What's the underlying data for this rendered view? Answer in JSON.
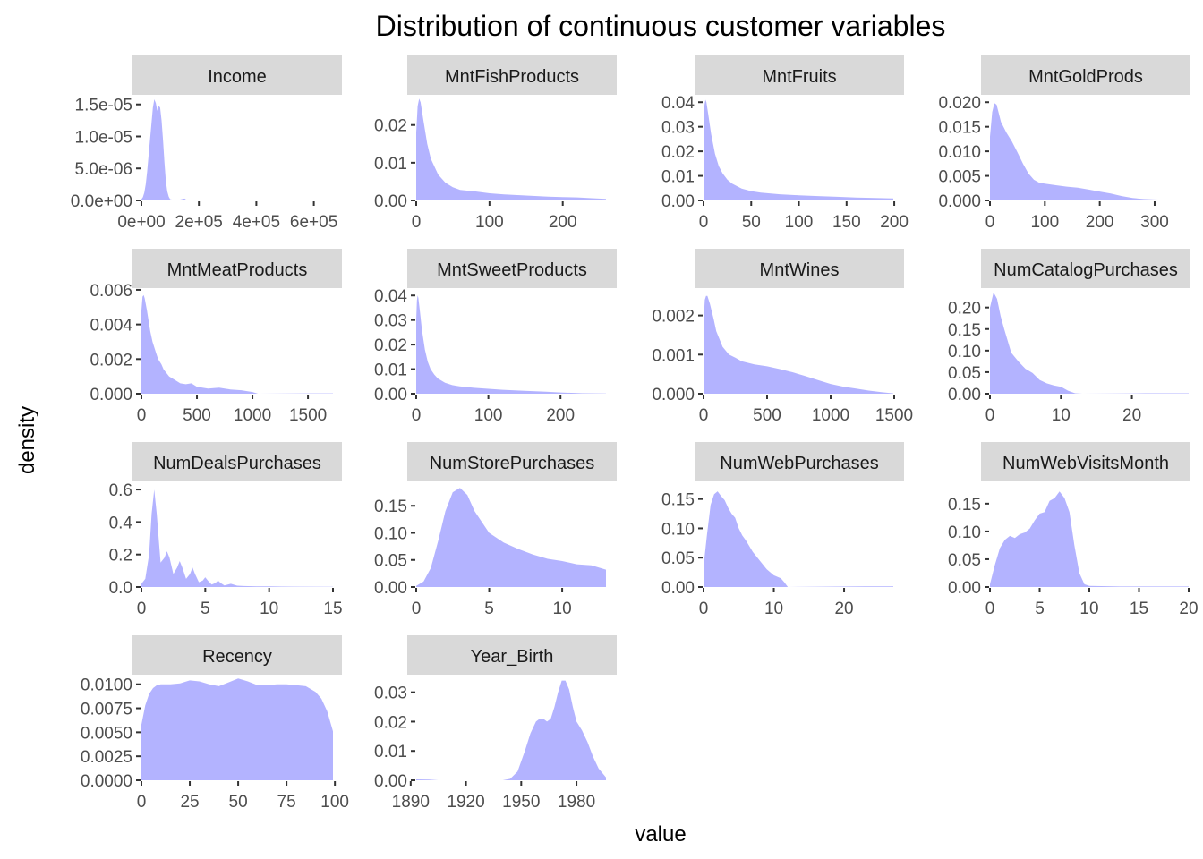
{
  "chart_data": {
    "type": "area",
    "title": "Distribution of continuous customer variables",
    "xlabel": "value",
    "ylabel": "density",
    "fill_color": "#b3b3ff",
    "strip_color": "#d9d9d9",
    "layout": "4 columns x 4 rows, free scales",
    "panels": [
      {
        "name": "Income",
        "xlim": [
          0,
          666666
        ],
        "ylim": [
          0,
          1.65e-05
        ],
        "xticks": [
          0,
          200000,
          400000,
          600000
        ],
        "xtick_labels": [
          "0e+00",
          "2e+05",
          "4e+05",
          "6e+05"
        ],
        "yticks": [
          0,
          5e-06,
          1e-05,
          1.5e-05
        ],
        "ytick_labels": [
          "0.0e+00",
          "5.0e-06",
          "1.0e-05",
          "1.5e-05"
        ],
        "x": [
          0,
          5000,
          10000,
          15000,
          20000,
          30000,
          40000,
          45000,
          50000,
          55000,
          60000,
          65000,
          70000,
          75000,
          80000,
          85000,
          90000,
          95000,
          100000,
          110000,
          120000,
          150000,
          160000,
          666666
        ],
        "y": [
          2e-07,
          5e-07,
          1.2e-06,
          2.5e-06,
          4.5e-06,
          9.5e-06,
          1.45e-05,
          1.58e-05,
          1.52e-05,
          1.4e-05,
          1.48e-05,
          1.45e-05,
          1.25e-05,
          9.5e-06,
          6e-06,
          3e-06,
          1.4e-06,
          6e-07,
          2e-07,
          1e-07,
          0,
          3e-07,
          0,
          0
        ]
      },
      {
        "name": "MntFishProducts",
        "xlim": [
          0,
          259
        ],
        "ylim": [
          0,
          0.028
        ],
        "xticks": [
          0,
          100,
          200
        ],
        "xtick_labels": [
          "0",
          "100",
          "200"
        ],
        "yticks": [
          0,
          0.01,
          0.02
        ],
        "ytick_labels": [
          "0.00",
          "0.01",
          "0.02"
        ],
        "x": [
          0,
          2,
          4,
          6,
          10,
          15,
          20,
          30,
          40,
          50,
          60,
          80,
          100,
          120,
          150,
          180,
          200,
          220,
          240,
          259
        ],
        "y": [
          0.018,
          0.025,
          0.027,
          0.026,
          0.021,
          0.015,
          0.011,
          0.0068,
          0.0047,
          0.0035,
          0.0028,
          0.0024,
          0.0019,
          0.0016,
          0.0013,
          0.001,
          0.0009,
          0.0008,
          0.0006,
          0.0004
        ]
      },
      {
        "name": "MntFruits",
        "xlim": [
          0,
          199
        ],
        "ylim": [
          0,
          0.043
        ],
        "xticks": [
          0,
          50,
          100,
          150,
          200
        ],
        "xtick_labels": [
          "0",
          "50",
          "100",
          "150",
          "200"
        ],
        "yticks": [
          0,
          0.01,
          0.02,
          0.03,
          0.04
        ],
        "ytick_labels": [
          "0.00",
          "0.01",
          "0.02",
          "0.03",
          "0.04"
        ],
        "x": [
          0,
          1,
          2,
          3,
          5,
          8,
          12,
          16,
          20,
          25,
          30,
          40,
          50,
          60,
          80,
          100,
          120,
          140,
          160,
          180,
          199
        ],
        "y": [
          0.03,
          0.039,
          0.041,
          0.04,
          0.035,
          0.027,
          0.019,
          0.014,
          0.011,
          0.0085,
          0.0068,
          0.0048,
          0.0038,
          0.0032,
          0.0025,
          0.0021,
          0.0018,
          0.0015,
          0.0012,
          0.001,
          0.0008
        ]
      },
      {
        "name": "MntGoldProds",
        "xlim": [
          0,
          362
        ],
        "ylim": [
          0,
          0.0215
        ],
        "xticks": [
          0,
          100,
          200,
          300
        ],
        "xtick_labels": [
          "0",
          "100",
          "200",
          "300"
        ],
        "yticks": [
          0,
          0.005,
          0.01,
          0.015,
          0.02
        ],
        "ytick_labels": [
          "0.000",
          "0.005",
          "0.010",
          "0.015",
          "0.020"
        ],
        "x": [
          0,
          4,
          8,
          12,
          20,
          30,
          40,
          50,
          60,
          70,
          80,
          90,
          100,
          120,
          140,
          160,
          180,
          200,
          220,
          240,
          260,
          280,
          300,
          330,
          362
        ],
        "y": [
          0.013,
          0.018,
          0.0198,
          0.0195,
          0.016,
          0.0138,
          0.012,
          0.0098,
          0.0075,
          0.0055,
          0.0042,
          0.0036,
          0.0034,
          0.0031,
          0.0028,
          0.0026,
          0.0022,
          0.0018,
          0.0014,
          0.0009,
          0.0005,
          0.0003,
          0.0002,
          0.0001,
          0
        ]
      },
      {
        "name": "MntMeatProducts",
        "xlim": [
          0,
          1725
        ],
        "ylim": [
          0,
          0.0061
        ],
        "xticks": [
          0,
          500,
          1000,
          1500
        ],
        "xtick_labels": [
          "0",
          "500",
          "1000",
          "1500"
        ],
        "yticks": [
          0,
          0.002,
          0.004,
          0.006
        ],
        "ytick_labels": [
          "0.000",
          "0.002",
          "0.004",
          "0.006"
        ],
        "x": [
          0,
          10,
          20,
          30,
          50,
          80,
          100,
          130,
          150,
          180,
          200,
          250,
          300,
          350,
          400,
          450,
          500,
          600,
          700,
          800,
          900,
          1000,
          1050,
          1500,
          1725
        ],
        "y": [
          0.0048,
          0.0056,
          0.0057,
          0.0055,
          0.0048,
          0.0036,
          0.003,
          0.0024,
          0.002,
          0.0017,
          0.0014,
          0.001,
          0.0008,
          0.0006,
          0.00055,
          0.0006,
          0.0004,
          0.0003,
          0.00035,
          0.00025,
          0.0002,
          0.0001,
          0,
          2e-05,
          2e-05
        ]
      },
      {
        "name": "MntSweetProducts",
        "xlim": [
          0,
          263
        ],
        "ylim": [
          0,
          0.043
        ],
        "xticks": [
          0,
          100,
          200
        ],
        "xtick_labels": [
          "0",
          "100",
          "200"
        ],
        "yticks": [
          0,
          0.01,
          0.02,
          0.03,
          0.04
        ],
        "ytick_labels": [
          "0.00",
          "0.01",
          "0.02",
          "0.03",
          "0.04"
        ],
        "x": [
          0,
          1,
          2,
          3,
          5,
          8,
          12,
          16,
          20,
          25,
          30,
          40,
          50,
          60,
          80,
          100,
          120,
          150,
          180,
          200,
          230,
          263
        ],
        "y": [
          0.03,
          0.038,
          0.04,
          0.039,
          0.034,
          0.026,
          0.018,
          0.013,
          0.01,
          0.0078,
          0.0062,
          0.0045,
          0.0035,
          0.003,
          0.0024,
          0.002,
          0.0016,
          0.0012,
          0.0008,
          0.0005,
          0.0002,
          0.0001
        ]
      },
      {
        "name": "MntWines",
        "xlim": [
          0,
          1493
        ],
        "ylim": [
          0,
          0.0027
        ],
        "xticks": [
          0,
          500,
          1000,
          1500
        ],
        "xtick_labels": [
          "0",
          "500",
          "1000",
          "1500"
        ],
        "yticks": [
          0,
          0.001,
          0.002
        ],
        "ytick_labels": [
          "0.000",
          "0.001",
          "0.002"
        ],
        "x": [
          0,
          10,
          20,
          30,
          50,
          80,
          100,
          150,
          200,
          250,
          300,
          400,
          500,
          600,
          700,
          800,
          900,
          1000,
          1100,
          1200,
          1300,
          1400,
          1493
        ],
        "y": [
          0.0018,
          0.0024,
          0.0025,
          0.0025,
          0.0023,
          0.0019,
          0.0016,
          0.0012,
          0.001,
          0.00092,
          0.00083,
          0.00075,
          0.0007,
          0.00063,
          0.00055,
          0.00045,
          0.00035,
          0.00025,
          0.00018,
          0.00013,
          8e-05,
          4e-05,
          1e-05
        ]
      },
      {
        "name": "NumCatalogPurchases",
        "xlim": [
          0,
          28
        ],
        "ylim": [
          0,
          0.245
        ],
        "xticks": [
          0,
          10,
          20
        ],
        "xtick_labels": [
          "0",
          "10",
          "20"
        ],
        "yticks": [
          0,
          0.05,
          0.1,
          0.15,
          0.2
        ],
        "ytick_labels": [
          "0.00",
          "0.05",
          "0.10",
          "0.15",
          "0.20"
        ],
        "x": [
          0,
          0.5,
          1,
          1.5,
          2,
          3,
          4,
          5,
          6,
          7,
          8,
          9,
          10,
          11,
          12,
          13,
          22,
          28
        ],
        "y": [
          0.2,
          0.235,
          0.22,
          0.18,
          0.15,
          0.095,
          0.075,
          0.058,
          0.048,
          0.032,
          0.024,
          0.019,
          0.016,
          0.007,
          0.001,
          0,
          0.001,
          0.001
        ]
      },
      {
        "name": "NumDealsPurchases",
        "xlim": [
          0,
          15
        ],
        "ylim": [
          0,
          0.65
        ],
        "xticks": [
          0,
          5,
          10,
          15
        ],
        "xtick_labels": [
          "0",
          "5",
          "10",
          "15"
        ],
        "yticks": [
          0,
          0.2,
          0.4,
          0.6
        ],
        "ytick_labels": [
          "0.0",
          "0.2",
          "0.4",
          "0.6"
        ],
        "x": [
          0,
          0.3,
          0.6,
          0.8,
          1,
          1.2,
          1.5,
          1.8,
          2,
          2.2,
          2.5,
          2.8,
          3,
          3.2,
          3.5,
          3.8,
          4,
          4.2,
          4.5,
          4.8,
          5,
          5.2,
          5.5,
          5.8,
          6,
          6.2,
          6.5,
          7,
          7.5,
          8,
          9,
          10,
          11,
          12,
          15
        ],
        "y": [
          0.02,
          0.05,
          0.2,
          0.45,
          0.6,
          0.45,
          0.15,
          0.18,
          0.22,
          0.18,
          0.08,
          0.12,
          0.16,
          0.12,
          0.05,
          0.08,
          0.12,
          0.08,
          0.03,
          0.04,
          0.06,
          0.04,
          0.015,
          0.025,
          0.04,
          0.025,
          0.01,
          0.02,
          0.008,
          0.006,
          0.004,
          0.004,
          0.003,
          0.002,
          0.001
        ]
      },
      {
        "name": "NumStorePurchases",
        "xlim": [
          0,
          13
        ],
        "ylim": [
          0,
          0.195
        ],
        "xticks": [
          0,
          5,
          10
        ],
        "xtick_labels": [
          "0",
          "5",
          "10"
        ],
        "yticks": [
          0,
          0.05,
          0.1,
          0.15
        ],
        "ytick_labels": [
          "0.00",
          "0.05",
          "0.10",
          "0.15"
        ],
        "x": [
          0,
          0.5,
          1,
          1.5,
          2,
          2.5,
          3,
          3.5,
          4,
          5,
          6,
          7,
          8,
          9,
          10,
          11,
          12,
          13
        ],
        "y": [
          0.002,
          0.01,
          0.035,
          0.085,
          0.14,
          0.175,
          0.183,
          0.17,
          0.14,
          0.1,
          0.082,
          0.07,
          0.06,
          0.052,
          0.048,
          0.042,
          0.04,
          0.032
        ]
      },
      {
        "name": "NumWebPurchases",
        "xlim": [
          0,
          27
        ],
        "ylim": [
          0,
          0.18
        ],
        "xticks": [
          0,
          10,
          20
        ],
        "xtick_labels": [
          "0",
          "10",
          "20"
        ],
        "yticks": [
          0,
          0.05,
          0.1,
          0.15
        ],
        "ytick_labels": [
          "0.00",
          "0.05",
          "0.10",
          "0.15"
        ],
        "x": [
          0,
          0.5,
          1,
          1.5,
          2,
          2.5,
          3,
          3.5,
          4,
          4.5,
          5,
          5.5,
          6,
          7,
          8,
          9,
          10,
          11,
          11.5,
          12,
          23,
          27
        ],
        "y": [
          0.035,
          0.09,
          0.14,
          0.158,
          0.163,
          0.155,
          0.148,
          0.135,
          0.125,
          0.118,
          0.1,
          0.088,
          0.08,
          0.06,
          0.045,
          0.03,
          0.02,
          0.015,
          0.008,
          0,
          0.001,
          0.001
        ]
      },
      {
        "name": "NumWebVisitsMonth",
        "xlim": [
          0,
          20
        ],
        "ylim": [
          0,
          0.19
        ],
        "xticks": [
          0,
          5,
          10,
          15,
          20
        ],
        "xtick_labels": [
          "0",
          "5",
          "10",
          "15",
          "20"
        ],
        "yticks": [
          0,
          0.05,
          0.1,
          0.15
        ],
        "ytick_labels": [
          "0.00",
          "0.05",
          "0.10",
          "0.15"
        ],
        "x": [
          0,
          0.5,
          1,
          1.5,
          2,
          2.5,
          3,
          3.5,
          4,
          4.5,
          5,
          5.5,
          6,
          6.5,
          7,
          7.5,
          8,
          8.5,
          9,
          9.5,
          10,
          13,
          17,
          20
        ],
        "y": [
          0.005,
          0.04,
          0.07,
          0.085,
          0.092,
          0.088,
          0.095,
          0.098,
          0.105,
          0.12,
          0.132,
          0.135,
          0.155,
          0.16,
          0.172,
          0.16,
          0.135,
          0.075,
          0.025,
          0.005,
          0.002,
          0.001,
          0.001,
          0.001
        ]
      },
      {
        "name": "Recency",
        "xlim": [
          0,
          99
        ],
        "ylim": [
          0,
          0.011
        ],
        "xticks": [
          0,
          25,
          50,
          75,
          100
        ],
        "xtick_labels": [
          "0",
          "25",
          "50",
          "75",
          "100"
        ],
        "yticks": [
          0,
          0.0025,
          0.005,
          0.0075,
          0.01
        ],
        "ytick_labels": [
          "0.0000",
          "0.0025",
          "0.0050",
          "0.0075",
          "0.0100"
        ],
        "x": [
          0,
          2,
          4,
          6,
          8,
          10,
          15,
          20,
          25,
          30,
          35,
          40,
          45,
          50,
          55,
          60,
          65,
          70,
          75,
          80,
          85,
          90,
          93,
          96,
          99
        ],
        "y": [
          0.0058,
          0.0078,
          0.009,
          0.0096,
          0.0099,
          0.01,
          0.01,
          0.0101,
          0.0104,
          0.0103,
          0.01,
          0.0098,
          0.0102,
          0.0106,
          0.0103,
          0.0099,
          0.0099,
          0.01,
          0.01,
          0.0099,
          0.0098,
          0.0092,
          0.0085,
          0.0072,
          0.0051
        ]
      },
      {
        "name": "Year_Birth",
        "xlim": [
          1893,
          1996
        ],
        "ylim": [
          0,
          0.036
        ],
        "xticks": [
          1890,
          1920,
          1950,
          1980
        ],
        "xtick_labels": [
          "1890",
          "1920",
          "1950",
          "1980"
        ],
        "yticks": [
          0,
          0.01,
          0.02,
          0.03
        ],
        "ytick_labels": [
          "0.00",
          "0.01",
          "0.02",
          "0.03"
        ],
        "x": [
          1893,
          1900,
          1905,
          1940,
          1944,
          1948,
          1952,
          1955,
          1958,
          1960,
          1962,
          1964,
          1966,
          1968,
          1970,
          1972,
          1974,
          1976,
          1978,
          1980,
          1983,
          1986,
          1989,
          1992,
          1996
        ],
        "y": [
          0.0003,
          0.0002,
          0,
          0,
          0.0005,
          0.003,
          0.01,
          0.016,
          0.02,
          0.021,
          0.021,
          0.02,
          0.021,
          0.025,
          0.03,
          0.034,
          0.034,
          0.031,
          0.025,
          0.02,
          0.017,
          0.013,
          0.008,
          0.004,
          0.001
        ]
      }
    ]
  }
}
